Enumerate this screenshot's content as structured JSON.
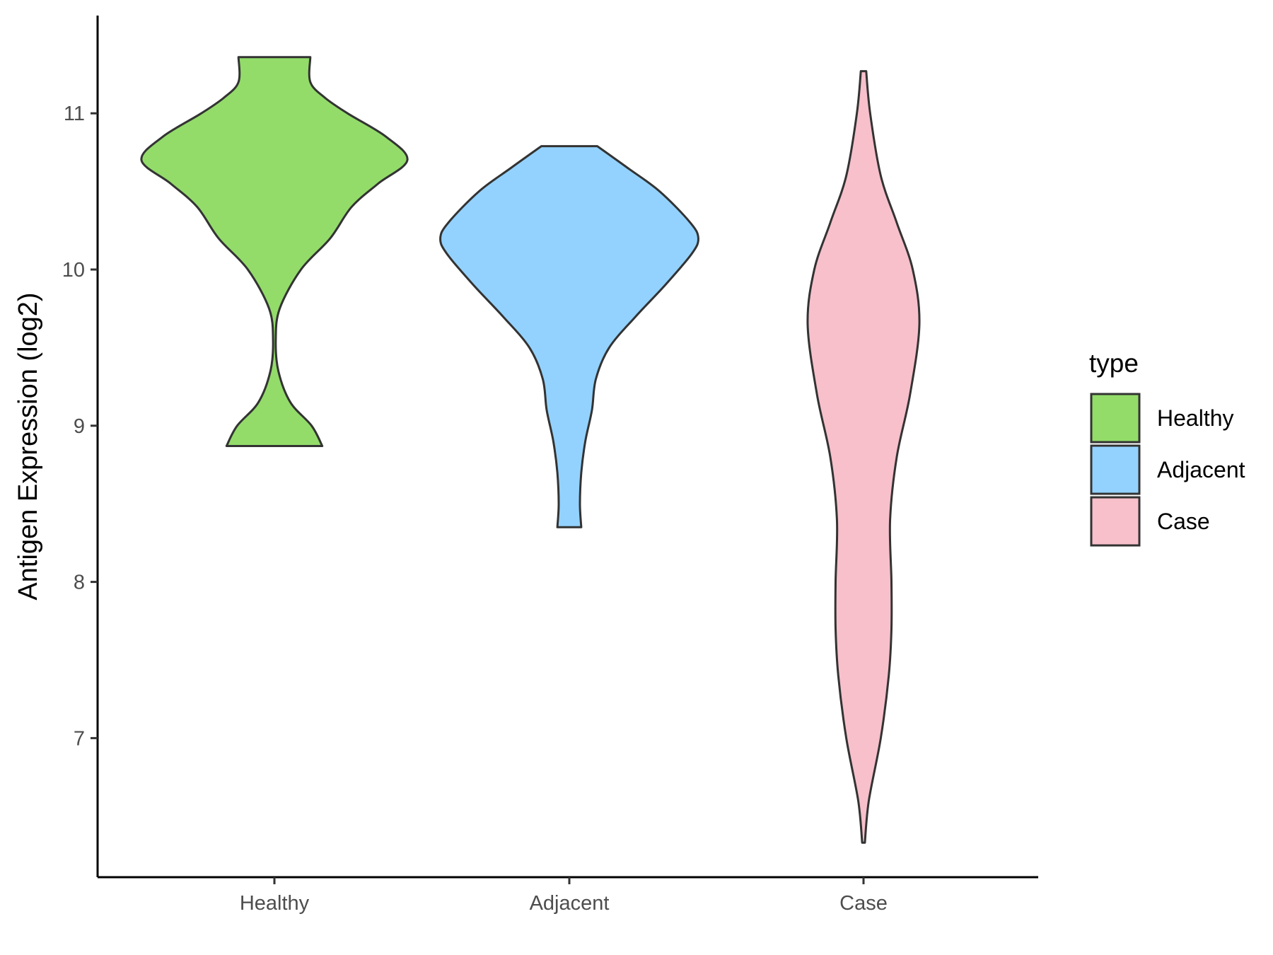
{
  "chart_data": {
    "type": "violin",
    "ylabel": "Antigen Expression (log2)",
    "xlabel": "",
    "ylim": [
      6.1,
      11.6
    ],
    "yticks": [
      7,
      8,
      9,
      10,
      11
    ],
    "categories": [
      "Healthy",
      "Adjacent",
      "Case"
    ],
    "legend": {
      "title": "type",
      "position": "right"
    },
    "grid": false,
    "series": [
      {
        "name": "Healthy",
        "color": "#93dc6a",
        "density": [
          [
            8.87,
            0.36
          ],
          [
            9.0,
            0.28
          ],
          [
            9.15,
            0.12
          ],
          [
            9.35,
            0.03
          ],
          [
            9.55,
            0.01
          ],
          [
            9.75,
            0.04
          ],
          [
            10.0,
            0.2
          ],
          [
            10.2,
            0.42
          ],
          [
            10.4,
            0.58
          ],
          [
            10.55,
            0.78
          ],
          [
            10.7,
            1.0
          ],
          [
            10.85,
            0.84
          ],
          [
            11.0,
            0.55
          ],
          [
            11.1,
            0.38
          ],
          [
            11.2,
            0.27
          ],
          [
            11.36,
            0.27
          ]
        ]
      },
      {
        "name": "Adjacent",
        "color": "#93d2fe",
        "density": [
          [
            8.35,
            0.09
          ],
          [
            8.5,
            0.08
          ],
          [
            8.7,
            0.09
          ],
          [
            8.9,
            0.12
          ],
          [
            9.1,
            0.17
          ],
          [
            9.3,
            0.2
          ],
          [
            9.5,
            0.3
          ],
          [
            9.7,
            0.5
          ],
          [
            9.9,
            0.72
          ],
          [
            10.1,
            0.92
          ],
          [
            10.2,
            0.97
          ],
          [
            10.3,
            0.91
          ],
          [
            10.5,
            0.68
          ],
          [
            10.65,
            0.44
          ],
          [
            10.79,
            0.21
          ]
        ]
      },
      {
        "name": "Case",
        "color": "#f7c0cb",
        "density": [
          [
            6.33,
            0.01
          ],
          [
            6.6,
            0.04
          ],
          [
            7.0,
            0.13
          ],
          [
            7.4,
            0.19
          ],
          [
            7.7,
            0.21
          ],
          [
            8.0,
            0.21
          ],
          [
            8.4,
            0.2
          ],
          [
            8.8,
            0.25
          ],
          [
            9.2,
            0.35
          ],
          [
            9.65,
            0.42
          ],
          [
            10.0,
            0.37
          ],
          [
            10.3,
            0.25
          ],
          [
            10.6,
            0.13
          ],
          [
            11.0,
            0.05
          ],
          [
            11.27,
            0.02
          ]
        ]
      }
    ]
  }
}
